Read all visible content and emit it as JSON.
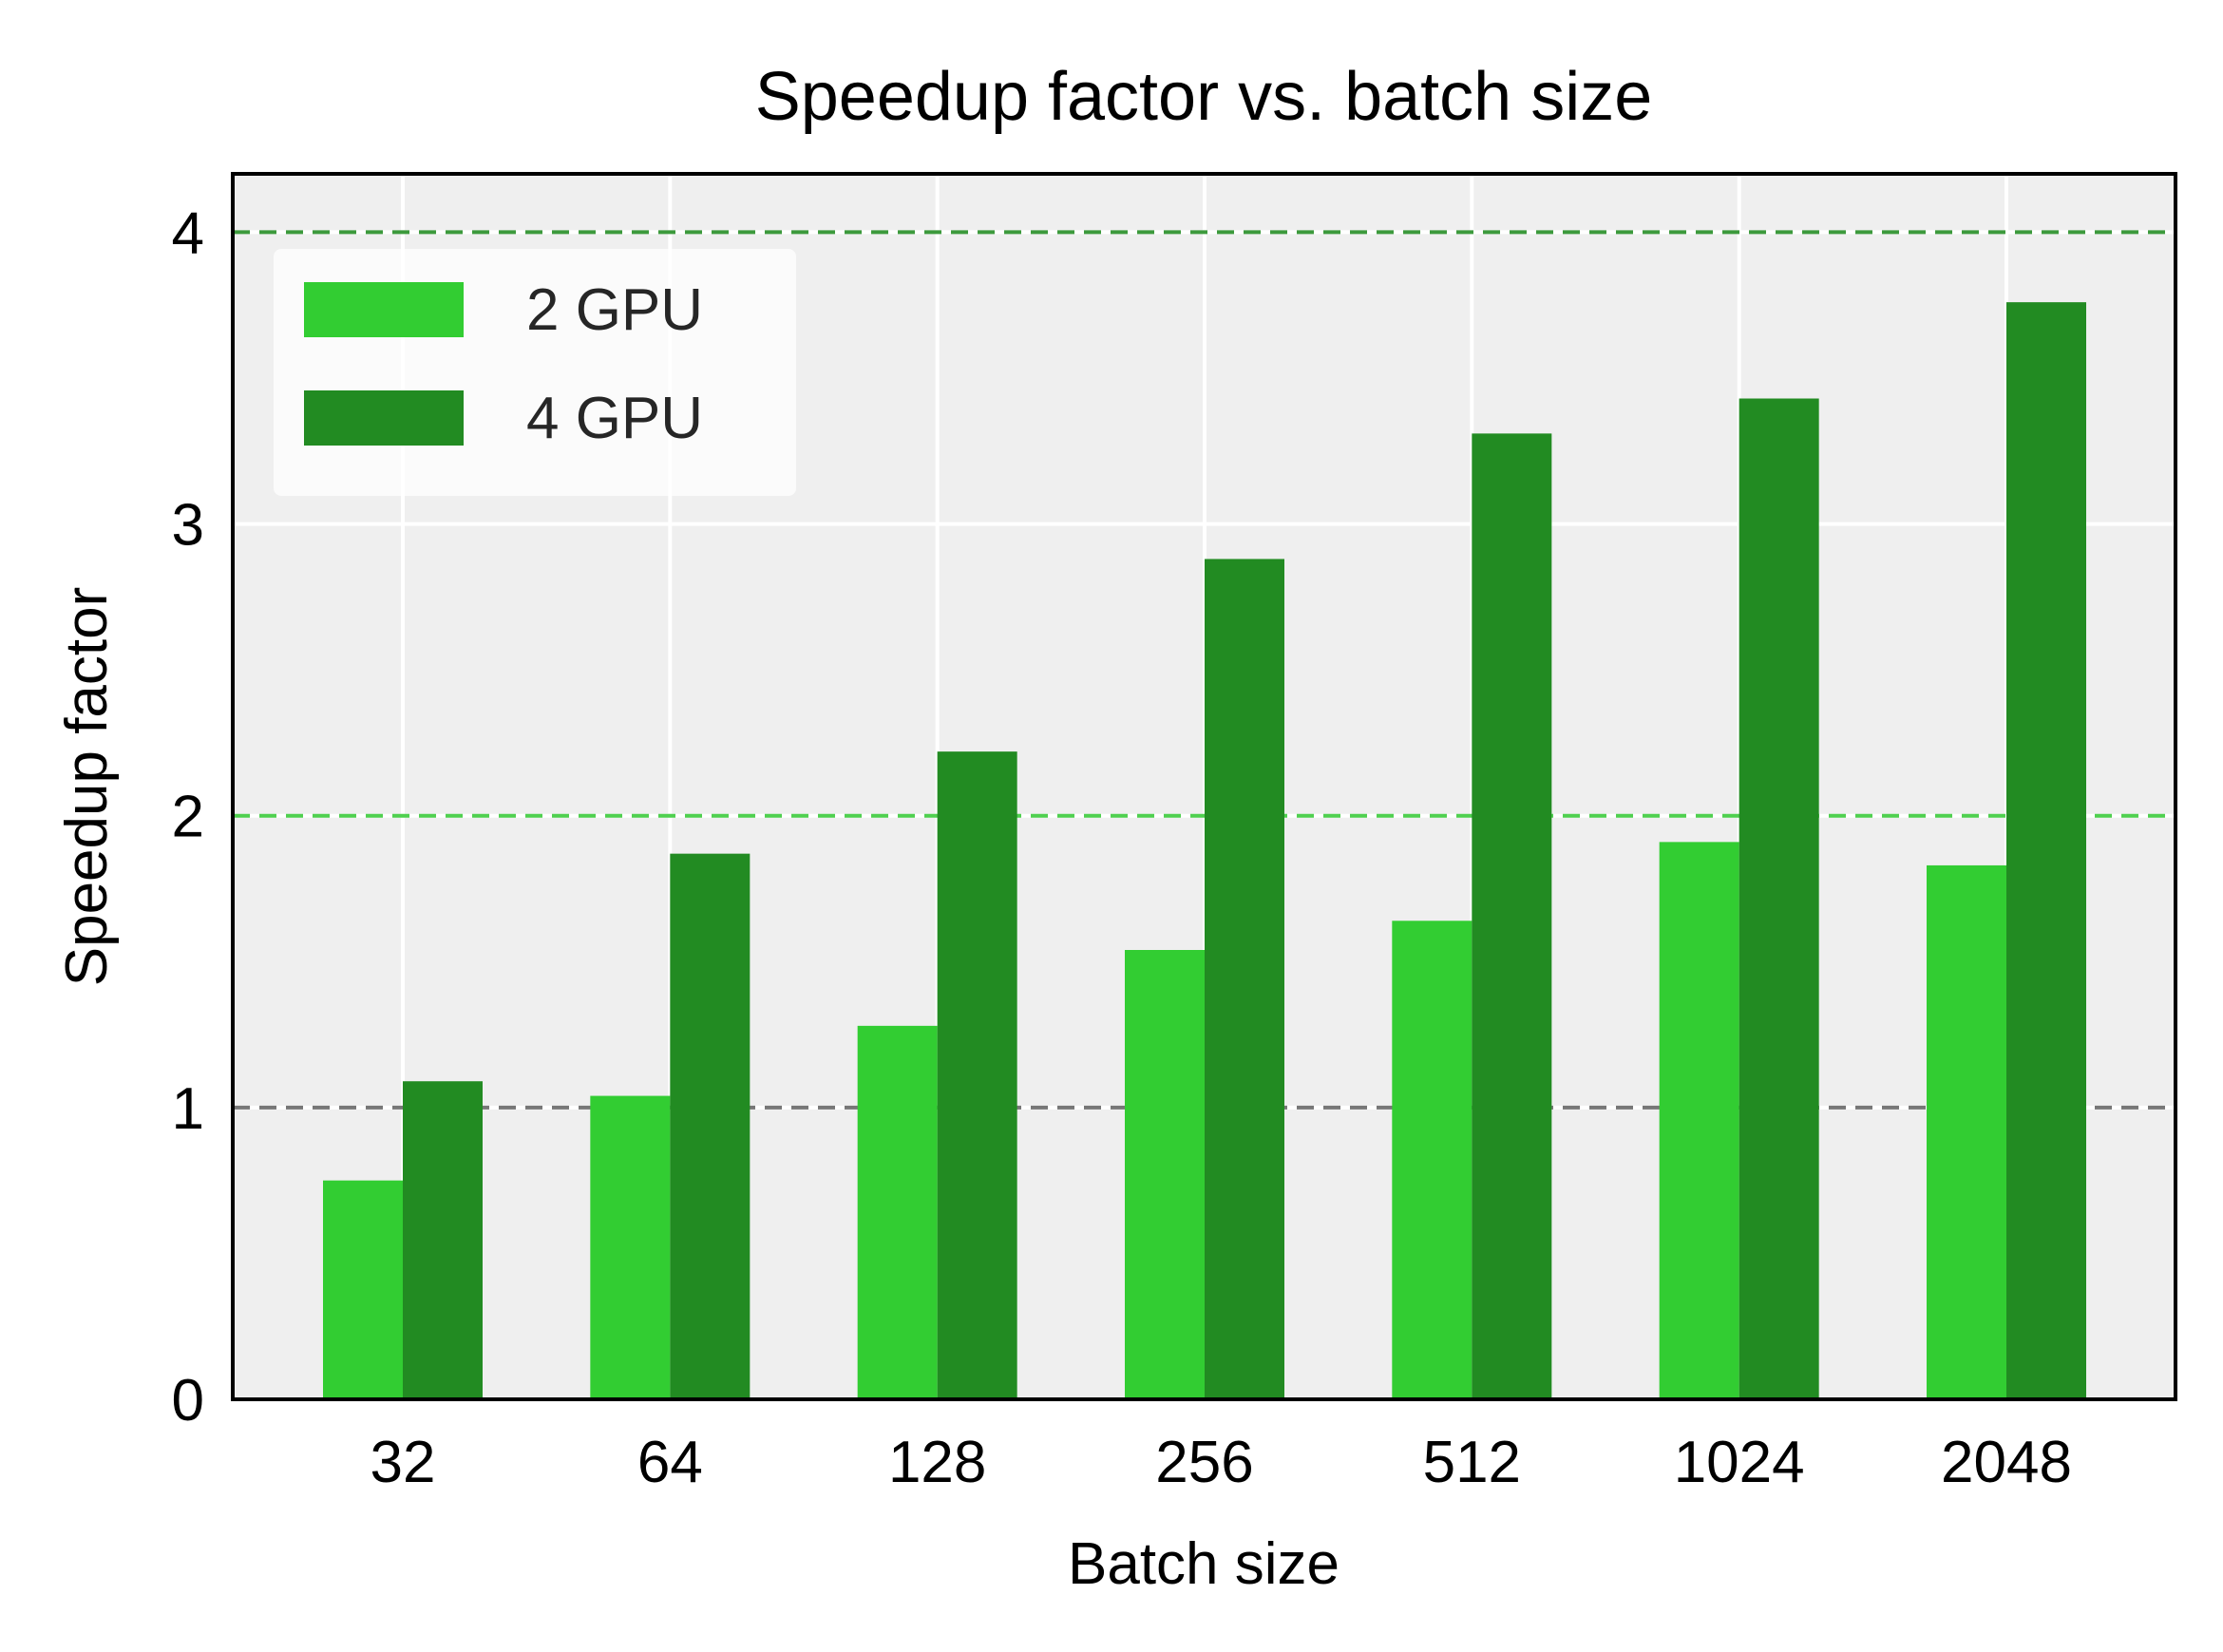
{
  "chart_data": {
    "type": "bar",
    "title": "Speedup factor vs. batch size",
    "xlabel": "Batch size",
    "ylabel": "Speedup factor",
    "categories": [
      "32",
      "64",
      "128",
      "256",
      "512",
      "1024",
      "2048"
    ],
    "series": [
      {
        "name": "2 GPU",
        "color": "#32cd32",
        "values": [
          0.75,
          1.04,
          1.28,
          1.54,
          1.64,
          1.91,
          1.83
        ]
      },
      {
        "name": "4 GPU",
        "color": "#228b22",
        "values": [
          1.09,
          1.87,
          2.22,
          2.88,
          3.31,
          3.43,
          3.76
        ]
      }
    ],
    "ylim": [
      0,
      4.2
    ],
    "yticks": [
      "0",
      "1",
      "2",
      "3",
      "4"
    ],
    "reference_lines": [
      {
        "y": 1,
        "color": "#777777",
        "style": "dashed"
      },
      {
        "y": 2,
        "color": "#4fd04f",
        "style": "dashed"
      },
      {
        "y": 4,
        "color": "#3c9a3c",
        "style": "dashed"
      }
    ],
    "grid": true,
    "legend_position": "top-left",
    "plot_background": "#efefef"
  }
}
